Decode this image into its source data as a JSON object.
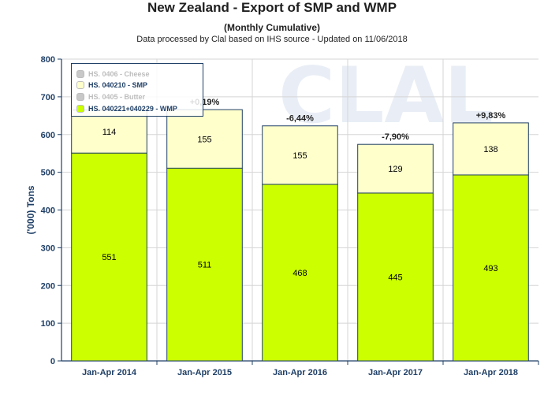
{
  "header": {
    "title": "New Zealand - Export of SMP and WMP",
    "subtitle": "(Monthly Cumulative)",
    "source": "Data processed by Clal based on IHS source - Updated on 11/06/2018"
  },
  "legend": [
    {
      "label": "HS. 0406 - Cheese",
      "color": "#c8c8c8",
      "text_color": "#bdbdbd"
    },
    {
      "label": "HS. 040210 - SMP",
      "color": "#ffffcc",
      "text_color": "#1f3f66"
    },
    {
      "label": "HS. 0405 - Butter",
      "color": "#c8c8c8",
      "text_color": "#bdbdbd"
    },
    {
      "label": "HS. 040221+040229 - WMP",
      "color": "#ccff00",
      "text_color": "#1f3f66"
    }
  ],
  "chart_data": {
    "type": "bar",
    "stacked": true,
    "title": "New Zealand - Export of SMP and WMP",
    "subtitle": "(Monthly Cumulative)",
    "xlabel": "",
    "ylabel": "('000) Tons",
    "ylim": [
      0,
      800
    ],
    "yticks": [
      0,
      100,
      200,
      300,
      400,
      500,
      600,
      700,
      800
    ],
    "grid": true,
    "categories": [
      "Jan-Apr 2014",
      "Jan-Apr 2015",
      "Jan-Apr 2016",
      "Jan-Apr 2017",
      "Jan-Apr 2018"
    ],
    "series": [
      {
        "name": "HS. 040221+040229 - WMP",
        "values": [
          551,
          511,
          468,
          445,
          493
        ],
        "color": "#ccff00"
      },
      {
        "name": "HS. 040210 - SMP",
        "values": [
          114,
          155,
          155,
          129,
          138
        ],
        "color": "#ffffcc"
      }
    ],
    "annotations": [
      "",
      "+0,19%",
      "-6,44%",
      "-7,90%",
      "+9,83%"
    ],
    "watermark": "CLAL"
  }
}
